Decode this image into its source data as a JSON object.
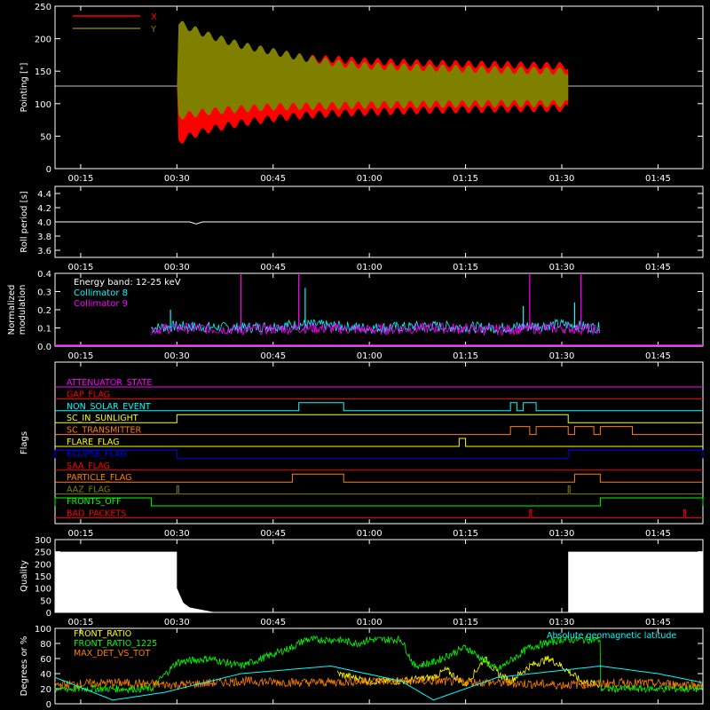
{
  "time_ticks": [
    "00:15",
    "00:30",
    "00:45",
    "01:00",
    "01:15",
    "01:30",
    "01:45"
  ],
  "colors": {
    "background": "#000000",
    "axes": "#ffffff",
    "x": "#ff0000",
    "y": "#808000",
    "collimator8": "#00ffff",
    "collimator9": "#ff00ff",
    "front_ratio": "#ffff00",
    "front_ratio_1225": "#00ff00",
    "max_det": "#ff8000",
    "geomag": "#00ffff"
  },
  "chart_data": [
    {
      "type": "area",
      "ylabel": "Pointing [\"]",
      "xlim": [
        "00:11",
        "01:52"
      ],
      "ylim": [
        0,
        250
      ],
      "yticks": [
        "0",
        "50",
        "100",
        "150",
        "200",
        "250"
      ],
      "legend_position": "top-left",
      "series": [
        {
          "name": "X",
          "color": "#ff0000",
          "x": [
            "00:11",
            "00:30",
            "00:30",
            "00:32",
            "00:35",
            "00:40",
            "00:45",
            "00:50",
            "00:55",
            "01:00",
            "01:10",
            "01:20",
            "01:31",
            "01:31",
            "01:52"
          ],
          "y_min": [
            127,
            127,
            40,
            50,
            60,
            70,
            77,
            82,
            85,
            87,
            90,
            92,
            93,
            127,
            127
          ],
          "y_max": [
            127,
            127,
            215,
            205,
            195,
            185,
            175,
            170,
            168,
            165,
            162,
            160,
            158,
            127,
            127
          ]
        },
        {
          "name": "Y",
          "color": "#808000",
          "x": [
            "00:11",
            "00:30",
            "00:30",
            "00:35",
            "00:40",
            "00:45",
            "00:50",
            "00:55",
            "01:00",
            "01:10",
            "01:20",
            "01:31",
            "01:31",
            "01:52"
          ],
          "y_min": [
            127,
            127,
            80,
            88,
            92,
            95,
            96,
            97,
            98,
            99,
            100,
            100,
            127,
            127
          ],
          "y_max": [
            127,
            127,
            225,
            205,
            190,
            180,
            170,
            162,
            158,
            155,
            152,
            150,
            127,
            127
          ]
        }
      ]
    },
    {
      "type": "line",
      "ylabel": "Roll period [s]",
      "xlim": [
        "00:11",
        "01:52"
      ],
      "ylim": [
        3.5,
        4.5
      ],
      "yticks": [
        "3.6",
        "3.8",
        "4.0",
        "4.2",
        "4.4"
      ],
      "series": [
        {
          "name": "",
          "color": "#ffffff",
          "x": [
            "00:11",
            "00:32",
            "00:33",
            "00:34",
            "01:52"
          ],
          "y": [
            4.0,
            4.0,
            3.97,
            4.0,
            4.0
          ]
        }
      ]
    },
    {
      "type": "line",
      "ylabel": "Normalized modulation",
      "xlim": [
        "00:11",
        "01:52"
      ],
      "ylim": [
        0,
        0.4
      ],
      "yticks": [
        "0.0",
        "0.1",
        "0.2",
        "0.3",
        "0.4"
      ],
      "annotation": "Energy band: 12-25 keV",
      "series": [
        {
          "name": "Collimator 8",
          "color": "#00ffff",
          "x": [
            "00:26",
            "00:30",
            "00:40",
            "00:50",
            "01:00",
            "01:10",
            "01:20",
            "01:30",
            "01:36"
          ],
          "y": [
            0.1,
            0.11,
            0.1,
            0.12,
            0.1,
            0.11,
            0.1,
            0.12,
            0.1
          ],
          "spikes": [
            {
              "x": "00:29",
              "y": 0.2
            },
            {
              "x": "00:50",
              "y": 0.32
            },
            {
              "x": "01:24",
              "y": 0.22
            },
            {
              "x": "01:32",
              "y": 0.24
            }
          ]
        },
        {
          "name": "Collimator 9",
          "color": "#ff00ff",
          "x": [
            "00:26",
            "00:30",
            "00:40",
            "00:50",
            "01:00",
            "01:10",
            "01:20",
            "01:30",
            "01:36"
          ],
          "y": [
            0.09,
            0.1,
            0.09,
            0.1,
            0.09,
            0.1,
            0.09,
            0.1,
            0.09
          ],
          "spikes": [
            {
              "x": "00:40",
              "y": 0.4
            },
            {
              "x": "00:49",
              "y": 0.4
            },
            {
              "x": "01:25",
              "y": 0.4
            },
            {
              "x": "01:33",
              "y": 0.4
            }
          ]
        }
      ]
    },
    {
      "type": "line",
      "ylabel": "Flags",
      "xlim": [
        "00:11",
        "01:52"
      ],
      "flags": [
        {
          "label": "ATTENUATOR_STATE",
          "color": "#ff00ff",
          "highs": []
        },
        {
          "label": "GAP_FLAG",
          "color": "#ff0000",
          "highs": []
        },
        {
          "label": "NON_SOLAR_EVENT",
          "color": "#00ffff",
          "highs": [
            [
              "00:49",
              "00:56"
            ],
            [
              "01:22",
              "01:23"
            ],
            [
              "01:24",
              "01:26"
            ]
          ]
        },
        {
          "label": "SC_IN_SUNLIGHT",
          "color": "#ffff00",
          "highs": [
            [
              "00:30",
              "01:31"
            ]
          ]
        },
        {
          "label": "SC_TRANSMITTER",
          "color": "#ff8000",
          "highs": [
            [
              "01:22",
              "01:25"
            ],
            [
              "01:26",
              "01:31"
            ],
            [
              "01:32",
              "01:35"
            ],
            [
              "01:36",
              "01:41"
            ]
          ]
        },
        {
          "label": "FLARE_FLAG",
          "color": "#ffff00",
          "highs": [
            [
              "01:14",
              "01:15"
            ]
          ]
        },
        {
          "label": "ECLIPSE_FLAG",
          "color": "#0000ff",
          "highs": [
            [
              "00:11",
              "00:30"
            ],
            [
              "01:31",
              "01:52"
            ]
          ]
        },
        {
          "label": "SAA_FLAG",
          "color": "#ff0000",
          "highs": []
        },
        {
          "label": "PARTICLE_FLAG",
          "color": "#ff8000",
          "highs": [
            [
              "00:48",
              "00:56"
            ],
            [
              "01:32",
              "01:36"
            ]
          ]
        },
        {
          "label": "AAZ_FLAG",
          "color": "#808000",
          "highs": [
            [
              "00:30",
              "00:30"
            ],
            [
              "01:31",
              "01:31"
            ]
          ]
        },
        {
          "label": "FRONTS_OFF",
          "color": "#00ff00",
          "highs": [
            [
              "00:11",
              "00:26"
            ],
            [
              "01:36",
              "01:52"
            ]
          ]
        },
        {
          "label": "BAD_PACKETS",
          "color": "#ff0000",
          "highs": [
            [
              "01:25",
              "01:25"
            ],
            [
              "01:49",
              "01:49"
            ]
          ]
        }
      ]
    },
    {
      "type": "area",
      "ylabel": "Quality",
      "xlim": [
        "00:11",
        "01:52"
      ],
      "ylim": [
        0,
        300
      ],
      "yticks": [
        "0",
        "50",
        "100",
        "150",
        "200",
        "250",
        "300"
      ],
      "series": [
        {
          "name": "",
          "color": "#ffffff",
          "x": [
            "00:11",
            "00:30",
            "00:30",
            "00:31",
            "00:32",
            "00:33",
            "00:34",
            "00:35",
            "00:36",
            "01:31",
            "01:31",
            "01:52"
          ],
          "y": [
            250,
            250,
            100,
            40,
            20,
            15,
            10,
            5,
            0,
            0,
            250,
            250
          ]
        }
      ]
    },
    {
      "type": "line",
      "ylabel": "Degrees or %",
      "xlim": [
        "00:11",
        "01:52"
      ],
      "ylim": [
        0,
        100
      ],
      "yticks": [
        "0",
        "20",
        "40",
        "60",
        "80",
        "100"
      ],
      "series": [
        {
          "name": "FRONT_RATIO",
          "color": "#ffff00",
          "x": [
            "00:55",
            "01:00",
            "01:05",
            "01:10",
            "01:12",
            "01:15",
            "01:18",
            "01:20",
            "01:22",
            "01:25",
            "01:28",
            "01:30",
            "01:33",
            "01:36"
          ],
          "y": [
            40,
            30,
            30,
            35,
            45,
            25,
            60,
            40,
            30,
            50,
            60,
            50,
            30,
            25
          ]
        },
        {
          "name": "FRONT_RATIO_1225",
          "color": "#00ff00",
          "x": [
            "00:11",
            "00:26",
            "00:30",
            "00:35",
            "00:40",
            "00:48",
            "00:50",
            "00:55",
            "00:58",
            "01:00",
            "01:05",
            "01:07",
            "01:10",
            "01:15",
            "01:20",
            "01:25",
            "01:30",
            "01:36",
            "01:36",
            "01:52"
          ],
          "y": [
            20,
            20,
            55,
            60,
            50,
            75,
            85,
            85,
            80,
            85,
            85,
            50,
            55,
            75,
            45,
            75,
            85,
            85,
            20,
            20
          ]
        },
        {
          "name": "MAX_DET_VS_TOT",
          "color": "#ff8000",
          "x": [
            "00:11",
            "00:20",
            "00:30",
            "00:40",
            "00:50",
            "01:00",
            "01:10",
            "01:20",
            "01:30",
            "01:40",
            "01:52"
          ],
          "y": [
            25,
            28,
            25,
            30,
            28,
            30,
            30,
            28,
            25,
            28,
            25
          ]
        },
        {
          "name": "Absolute geomagnetic latitude",
          "color": "#00ffff",
          "x": [
            "00:11",
            "00:20",
            "00:28",
            "00:40",
            "00:54",
            "01:05",
            "01:10",
            "01:20",
            "01:36",
            "01:45",
            "01:52"
          ],
          "y": [
            35,
            5,
            15,
            40,
            50,
            30,
            5,
            35,
            50,
            40,
            28
          ]
        }
      ]
    }
  ]
}
